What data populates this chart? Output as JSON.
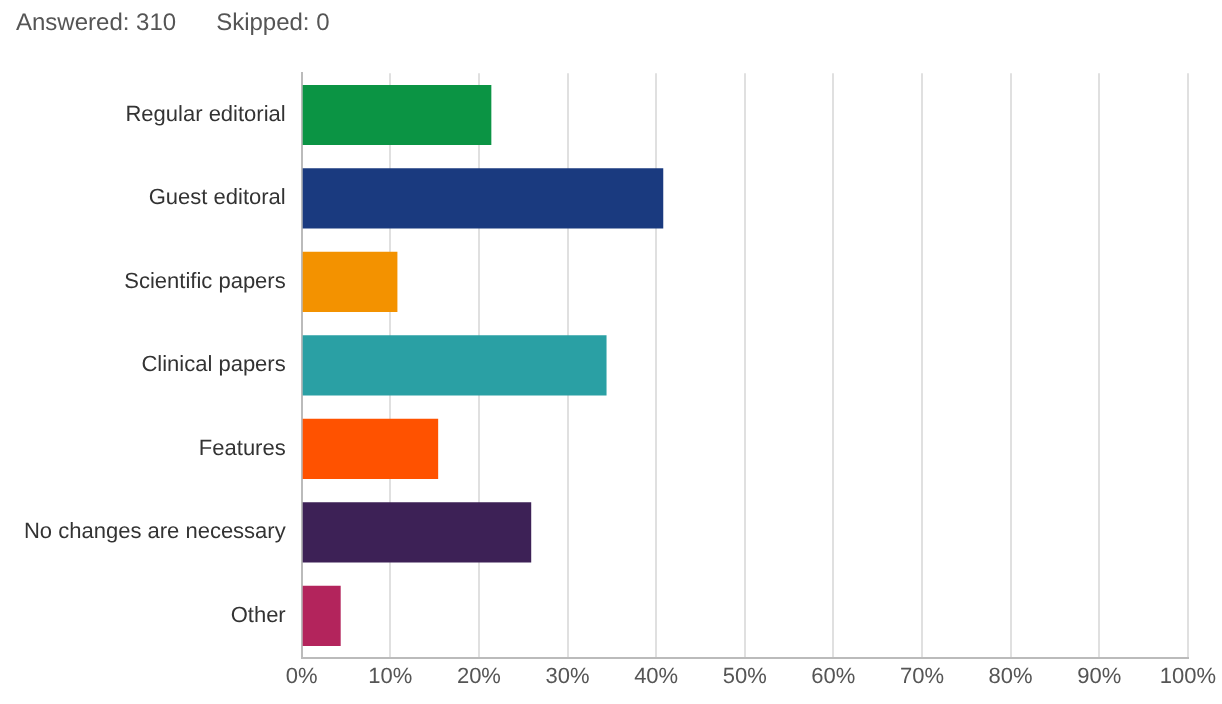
{
  "chart_data": {
    "type": "bar",
    "orientation": "horizontal",
    "annotations": [
      "Answered: 310",
      "Skipped: 0"
    ],
    "categories": [
      "Regular editorial",
      "Guest editoral",
      "Scientific papers",
      "Clinical papers",
      "Features",
      "No changes are necessary",
      "Other"
    ],
    "values": [
      21.4,
      40.8,
      10.8,
      34.4,
      15.4,
      25.9,
      4.4
    ],
    "colors": [
      "#0b9444",
      "#1a3a7f",
      "#f39200",
      "#2aa0a4",
      "#ff5200",
      "#3d2156",
      "#b3245c"
    ],
    "xlim": [
      0,
      100
    ],
    "xticks": [
      {
        "value": 0,
        "label": "0%"
      },
      {
        "value": 10,
        "label": "10%"
      },
      {
        "value": 20,
        "label": "20%"
      },
      {
        "value": 30,
        "label": "30%"
      },
      {
        "value": 40,
        "label": "40%"
      },
      {
        "value": 50,
        "label": "50%"
      },
      {
        "value": 60,
        "label": "60%"
      },
      {
        "value": 70,
        "label": "70%"
      },
      {
        "value": 80,
        "label": "80%"
      },
      {
        "value": 90,
        "label": "90%"
      },
      {
        "value": 100,
        "label": "100%"
      }
    ],
    "grid": "x",
    "legend": false
  }
}
